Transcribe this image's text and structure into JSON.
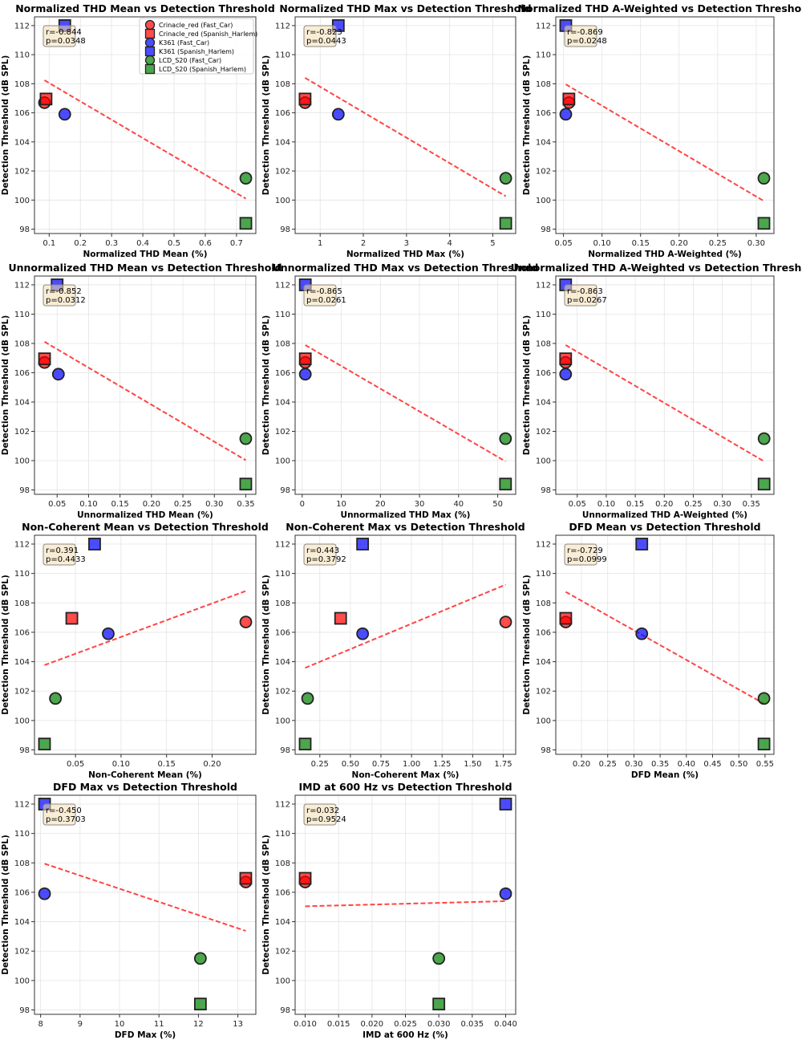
{
  "chart_data": [
    {
      "type": "scatter",
      "title": "Normalized THD Mean vs Detection Threshold",
      "xlabel": "Normalized THD Mean (%)",
      "ylabel": "Detection Threshold (dB SPL)",
      "xlim": [
        0.053,
        0.762
      ],
      "ylim": [
        97.7,
        112.6
      ],
      "xticks": [
        "0.1",
        "0.2",
        "0.3",
        "0.4",
        "0.5",
        "0.6",
        "0.7"
      ],
      "yticks": [
        "98",
        "100",
        "102",
        "104",
        "106",
        "108",
        "110",
        "112"
      ],
      "x": [
        0.085,
        0.09,
        0.15,
        0.15,
        0.73,
        0.73
      ],
      "stats": [
        "r=-0.844",
        "p=0.0348"
      ],
      "legend": true
    },
    {
      "type": "scatter",
      "title": "Normalized THD Max vs Detection Threshold",
      "xlabel": "Normalized THD Max (%)",
      "ylabel": "Detection Threshold (dB SPL)",
      "xlim": [
        0.42,
        5.53
      ],
      "ylim": [
        97.7,
        112.6
      ],
      "xticks": [
        "1",
        "2",
        "3",
        "4",
        "5"
      ],
      "yticks": [
        "98",
        "100",
        "102",
        "104",
        "106",
        "108",
        "110",
        "112"
      ],
      "x": [
        0.65,
        0.65,
        1.42,
        1.42,
        5.3,
        5.3
      ],
      "stats": [
        "r=-0.823",
        "p=0.0443"
      ]
    },
    {
      "type": "scatter",
      "title": "Normalized THD A-Weighted vs Detection Threshold",
      "xlabel": "Normalized THD A-Weighted (%)",
      "ylabel": "Detection Threshold (dB SPL)",
      "xlim": [
        0.04,
        0.323
      ],
      "ylim": [
        97.7,
        112.6
      ],
      "xticks": [
        "0.05",
        "0.10",
        "0.15",
        "0.20",
        "0.25",
        "0.30"
      ],
      "yticks": [
        "98",
        "100",
        "102",
        "104",
        "106",
        "108",
        "110",
        "112"
      ],
      "x": [
        0.057,
        0.057,
        0.053,
        0.053,
        0.31,
        0.31
      ],
      "stats": [
        "r=-0.869",
        "p=0.0248"
      ]
    },
    {
      "type": "scatter",
      "title": "Unnormalized THD Mean vs Detection Threshold",
      "xlabel": "Unnormalized THD Mean (%)",
      "ylabel": "Detection Threshold (dB SPL)",
      "xlim": [
        0.014,
        0.366
      ],
      "ylim": [
        97.7,
        112.6
      ],
      "xticks": [
        "0.05",
        "0.10",
        "0.15",
        "0.20",
        "0.25",
        "0.30",
        "0.35"
      ],
      "yticks": [
        "98",
        "100",
        "102",
        "104",
        "106",
        "108",
        "110",
        "112"
      ],
      "x": [
        0.03,
        0.03,
        0.052,
        0.05,
        0.35,
        0.35
      ],
      "stats": [
        "r=-0.852",
        "p=0.0312"
      ]
    },
    {
      "type": "scatter",
      "title": "Unnormalized THD Max vs Detection Threshold",
      "xlabel": "Unnormalized THD Max (%)",
      "ylabel": "Detection Threshold (dB SPL)",
      "xlim": [
        -1.8,
        54.6
      ],
      "ylim": [
        97.7,
        112.6
      ],
      "xticks": [
        "0",
        "10",
        "20",
        "30",
        "40",
        "50"
      ],
      "yticks": [
        "98",
        "100",
        "102",
        "104",
        "106",
        "108",
        "110",
        "112"
      ],
      "x": [
        0.8,
        0.8,
        0.8,
        0.8,
        52,
        52
      ],
      "stats": [
        "r=-0.865",
        "p=0.0261"
      ]
    },
    {
      "type": "scatter",
      "title": "Unnormalized THD A-Weighted vs Detection Threshold",
      "xlabel": "Unnormalized THD A-Weighted (%)",
      "ylabel": "Detection Threshold (dB SPL)",
      "xlim": [
        0.013,
        0.389
      ],
      "ylim": [
        97.7,
        112.6
      ],
      "xticks": [
        "0.05",
        "0.10",
        "0.15",
        "0.20",
        "0.25",
        "0.30",
        "0.35"
      ],
      "yticks": [
        "98",
        "100",
        "102",
        "104",
        "106",
        "108",
        "110",
        "112"
      ],
      "x": [
        0.03,
        0.03,
        0.03,
        0.03,
        0.372,
        0.372
      ],
      "stats": [
        "r=-0.863",
        "p=0.0267"
      ]
    },
    {
      "type": "scatter",
      "title": "Non-Coherent Mean vs Detection Threshold",
      "xlabel": "Non-Coherent Mean (%)",
      "ylabel": "Detection Threshold (dB SPL)",
      "xlim": [
        0.005,
        0.248
      ],
      "ylim": [
        97.7,
        112.6
      ],
      "xticks": [
        "0.05",
        "0.10",
        "0.15",
        "0.20"
      ],
      "yticks": [
        "98",
        "100",
        "102",
        "104",
        "106",
        "108",
        "110",
        "112"
      ],
      "x": [
        0.237,
        0.046,
        0.086,
        0.071,
        0.028,
        0.016
      ],
      "stats": [
        "r=0.391",
        "p=0.4433"
      ]
    },
    {
      "type": "scatter",
      "title": "Non-Coherent Max vs Detection Threshold",
      "xlabel": "Non-Coherent Max (%)",
      "ylabel": "Detection Threshold (dB SPL)",
      "xlim": [
        0.048,
        1.852
      ],
      "ylim": [
        97.7,
        112.6
      ],
      "xticks": [
        "0.25",
        "0.50",
        "0.75",
        "1.00",
        "1.25",
        "1.50",
        "1.75"
      ],
      "yticks": [
        "98",
        "100",
        "102",
        "104",
        "106",
        "108",
        "110",
        "112"
      ],
      "x": [
        1.77,
        0.42,
        0.6,
        0.6,
        0.15,
        0.13
      ],
      "stats": [
        "r=0.443",
        "p=0.3792"
      ]
    },
    {
      "type": "scatter",
      "title": "DFD Mean vs Detection Threshold",
      "xlabel": "DFD Mean (%)",
      "ylabel": "Detection Threshold (dB SPL)",
      "xlim": [
        0.151,
        0.567
      ],
      "ylim": [
        97.7,
        112.6
      ],
      "xticks": [
        "0.20",
        "0.25",
        "0.30",
        "0.35",
        "0.40",
        "0.45",
        "0.50",
        "0.55"
      ],
      "yticks": [
        "98",
        "100",
        "102",
        "104",
        "106",
        "108",
        "110",
        "112"
      ],
      "x": [
        0.17,
        0.17,
        0.315,
        0.315,
        0.548,
        0.548
      ],
      "stats": [
        "r=-0.729",
        "p=0.0999"
      ]
    },
    {
      "type": "scatter",
      "title": "DFD Max vs Detection Threshold",
      "xlabel": "DFD Max (%)",
      "ylabel": "Detection Threshold (dB SPL)",
      "xlim": [
        7.845,
        13.455
      ],
      "ylim": [
        97.7,
        112.6
      ],
      "xticks": [
        "8",
        "9",
        "10",
        "11",
        "12",
        "13"
      ],
      "yticks": [
        "98",
        "100",
        "102",
        "104",
        "106",
        "108",
        "110",
        "112"
      ],
      "x": [
        13.2,
        13.2,
        8.1,
        8.1,
        12.05,
        12.05
      ],
      "stats": [
        "r=-0.450",
        "p=0.3703"
      ]
    },
    {
      "type": "scatter",
      "title": "IMD at 600 Hz vs Detection Threshold",
      "xlabel": "IMD at 600 Hz (%)",
      "ylabel": "Detection Threshold (dB SPL)",
      "xlim": [
        0.0085,
        0.0415
      ],
      "ylim": [
        97.7,
        112.6
      ],
      "xticks": [
        "0.010",
        "0.015",
        "0.020",
        "0.025",
        "0.030",
        "0.035",
        "0.040"
      ],
      "yticks": [
        "98",
        "100",
        "102",
        "104",
        "106",
        "108",
        "110",
        "112"
      ],
      "x": [
        0.01,
        0.01,
        0.04,
        0.04,
        0.03,
        0.03
      ],
      "stats": [
        "r=0.032",
        "p=0.9524"
      ]
    }
  ],
  "series": [
    {
      "name": "Crinacle_red (Fast_Car)",
      "marker": "circle",
      "color": "#ff0000",
      "y": 106.7
    },
    {
      "name": "Crinacle_red (Spanish_Harlem)",
      "marker": "square",
      "color": "#ff0000",
      "y": 106.95
    },
    {
      "name": "K361 (Fast_Car)",
      "marker": "circle",
      "color": "#0000ff",
      "y": 105.9
    },
    {
      "name": "K361 (Spanish_Harlem)",
      "marker": "square",
      "color": "#0000ff",
      "y": 112.0
    },
    {
      "name": "LCD_S20 (Fast_Car)",
      "marker": "circle",
      "color": "#008000",
      "y": 101.5
    },
    {
      "name": "LCD_S20 (Spanish_Harlem)",
      "marker": "square",
      "color": "#008000",
      "y": 98.4
    }
  ],
  "trend_color": "#ff4444",
  "grid": true,
  "legend_position": "top-right"
}
